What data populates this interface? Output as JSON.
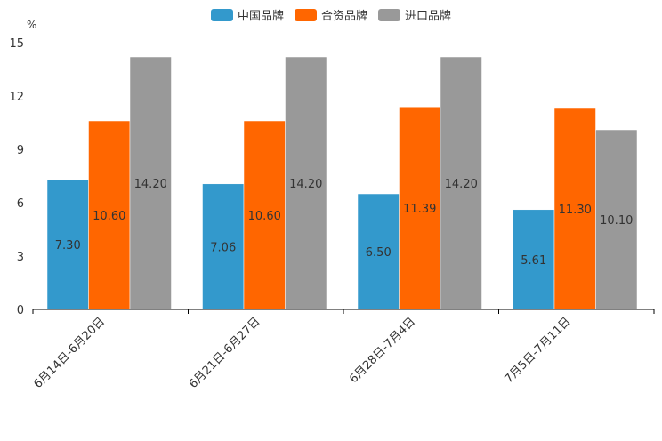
{
  "chart_data": {
    "type": "bar",
    "unit_label": "%",
    "categories": [
      "6月14日-6月20日",
      "6月21日-6月27日",
      "6月28日-7月4日",
      "7月5日-7月11日"
    ],
    "series": [
      {
        "name": "中国品牌",
        "color": "#3399cc",
        "values": [
          7.3,
          7.06,
          6.5,
          5.61
        ],
        "labels": [
          "7.30",
          "7.06",
          "6.50",
          "5.61"
        ]
      },
      {
        "name": "合资品牌",
        "color": "#ff6600",
        "values": [
          10.6,
          10.6,
          11.39,
          11.3
        ],
        "labels": [
          "10.60",
          "10.60",
          "11.39",
          "11.30"
        ]
      },
      {
        "name": "进口品牌",
        "color": "#999999",
        "values": [
          14.2,
          14.2,
          14.2,
          10.1
        ],
        "labels": [
          "14.20",
          "14.20",
          "14.20",
          "10.10"
        ]
      }
    ],
    "y_ticks": [
      "0",
      "3",
      "6",
      "9",
      "12",
      "15"
    ],
    "ylim": [
      0,
      15
    ],
    "legend_position": "top-center",
    "grid": false
  }
}
